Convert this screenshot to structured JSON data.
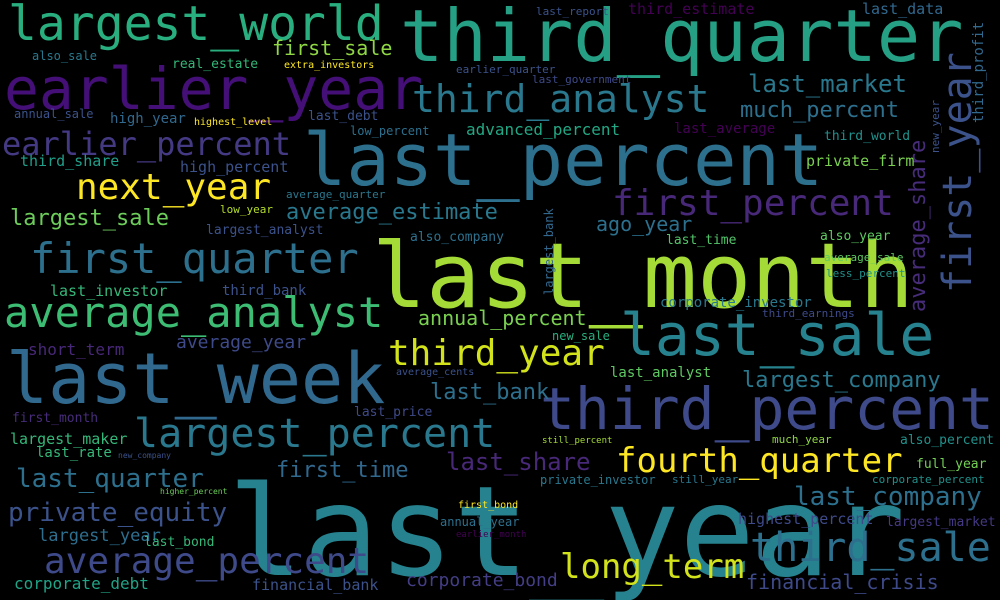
{
  "background": "#000000",
  "words": [
    {
      "text": "last_year",
      "color": "#26828e"
    },
    {
      "text": "last_month",
      "color": "#a5db36"
    },
    {
      "text": "last_percent",
      "color": "#2d708e"
    },
    {
      "text": "third_quarter",
      "color": "#25a085"
    },
    {
      "text": "last_week",
      "color": "#31688e"
    },
    {
      "text": "earlier_year",
      "color": "#440f76"
    },
    {
      "text": "largest_world",
      "color": "#29af7f"
    },
    {
      "text": "third_percent",
      "color": "#3e4a89"
    },
    {
      "text": "last_sale",
      "color": "#26828e"
    },
    {
      "text": "average_analyst",
      "color": "#3dbc74"
    },
    {
      "text": "first_quarter",
      "color": "#2d708e"
    },
    {
      "text": "largest_percent",
      "color": "#2a788e"
    },
    {
      "text": "third_sale",
      "color": "#2d708e"
    },
    {
      "text": "average_percent",
      "color": "#3e4a89"
    },
    {
      "text": "earlier_percent",
      "color": "#443983"
    },
    {
      "text": "next_year",
      "color": "#fde725"
    },
    {
      "text": "third_analyst",
      "color": "#2a788e"
    },
    {
      "text": "first_percent",
      "color": "#482878"
    },
    {
      "text": "fourth_quarter",
      "color": "#fde725"
    },
    {
      "text": "third_year",
      "color": "#d2e21b"
    },
    {
      "text": "long_term",
      "color": "#d2e21b"
    },
    {
      "text": "private_equity",
      "color": "#3b528b"
    },
    {
      "text": "first_year",
      "color": "#3b528b"
    },
    {
      "text": "average_share",
      "color": "#472c7a"
    },
    {
      "text": "last_market",
      "color": "#2a788e"
    },
    {
      "text": "much_percent",
      "color": "#2d708e"
    },
    {
      "text": "average_estimate",
      "color": "#2a788e"
    },
    {
      "text": "last_company",
      "color": "#2d708e"
    },
    {
      "text": "largest_company",
      "color": "#2a788e"
    },
    {
      "text": "last_quarter",
      "color": "#2d708e"
    },
    {
      "text": "last_share",
      "color": "#482878"
    },
    {
      "text": "last_bank",
      "color": "#2d708e"
    },
    {
      "text": "largest_sale",
      "color": "#6ccd5a"
    },
    {
      "text": "first_time",
      "color": "#31688e"
    },
    {
      "text": "annual_percent",
      "color": "#7ad151"
    },
    {
      "text": "financial_crisis",
      "color": "#3e4a89"
    },
    {
      "text": "corporate_bond",
      "color": "#433e85"
    },
    {
      "text": "ago_year",
      "color": "#2d708e"
    },
    {
      "text": "average_year",
      "color": "#3e4a89"
    },
    {
      "text": "first_sale",
      "color": "#8fd744"
    },
    {
      "text": "largest_year",
      "color": "#2e6e8e"
    },
    {
      "text": "third_profit",
      "color": "#31688e"
    },
    {
      "text": "third_estimate",
      "color": "#440154"
    },
    {
      "text": "last_data",
      "color": "#31688e"
    },
    {
      "text": "highest_percent",
      "color": "#3e4a89"
    },
    {
      "text": "advanced_percent",
      "color": "#22a884"
    },
    {
      "text": "last_investor",
      "color": "#35b779"
    },
    {
      "text": "corporate_debt",
      "color": "#20a486"
    },
    {
      "text": "short_term",
      "color": "#482878"
    },
    {
      "text": "private_firm",
      "color": "#7ad151"
    },
    {
      "text": "third_share",
      "color": "#1f9e89"
    },
    {
      "text": "high_percent",
      "color": "#3b528b"
    },
    {
      "text": "largest_maker",
      "color": "#35b779"
    },
    {
      "text": "financial_bank",
      "color": "#3b528b"
    },
    {
      "text": "last_average",
      "color": "#440154"
    },
    {
      "text": "third_bank",
      "color": "#3b528b"
    },
    {
      "text": "last_analyst",
      "color": "#5ec962"
    },
    {
      "text": "high_year",
      "color": "#31688e"
    },
    {
      "text": "real_estate",
      "color": "#35b779"
    },
    {
      "text": "last_rate",
      "color": "#35b779"
    },
    {
      "text": "first_month",
      "color": "#472c7a"
    },
    {
      "text": "last_time",
      "color": "#52c569"
    },
    {
      "text": "third_world",
      "color": "#21918c"
    },
    {
      "text": "also_company",
      "color": "#2d708e"
    },
    {
      "text": "corporate_investor",
      "color": "#2a788e"
    },
    {
      "text": "largest_analyst",
      "color": "#3b528b"
    },
    {
      "text": "largest_market",
      "color": "#443983"
    },
    {
      "text": "last_price",
      "color": "#3e4a89"
    },
    {
      "text": "also_percent",
      "color": "#21918c"
    },
    {
      "text": "full_year",
      "color": "#73d056"
    },
    {
      "text": "last_bond",
      "color": "#35b779"
    },
    {
      "text": "annual_year",
      "color": "#2d708e"
    },
    {
      "text": "private_investor",
      "color": "#2a788e"
    },
    {
      "text": "new_sale",
      "color": "#29af7f"
    },
    {
      "text": "also_year",
      "color": "#5ec962"
    },
    {
      "text": "annual_sale",
      "color": "#3b528b"
    },
    {
      "text": "also_sale",
      "color": "#2a788e"
    },
    {
      "text": "last_debt",
      "color": "#3b528b"
    },
    {
      "text": "low_percent",
      "color": "#2d708e"
    },
    {
      "text": "much_year",
      "color": "#8fd744"
    },
    {
      "text": "average_quarter",
      "color": "#2a788e"
    },
    {
      "text": "earlier_quarter",
      "color": "#3b528b"
    },
    {
      "text": "less_percent",
      "color": "#21918c"
    },
    {
      "text": "average_sale",
      "color": "#5ec962"
    },
    {
      "text": "new_year",
      "color": "#3b528b"
    },
    {
      "text": "third_earnings",
      "color": "#3e4a89"
    },
    {
      "text": "still_year",
      "color": "#2a788e"
    },
    {
      "text": "corporate_percent",
      "color": "#21918c"
    },
    {
      "text": "low_year",
      "color": "#b5de2b"
    },
    {
      "text": "highest_level",
      "color": "#fde725"
    },
    {
      "text": "extra_investors",
      "color": "#fde725"
    },
    {
      "text": "last_report",
      "color": "#3b528b"
    },
    {
      "text": "last_government",
      "color": "#3e4a89"
    },
    {
      "text": "still_percent",
      "color": "#a5db36"
    },
    {
      "text": "average_cents",
      "color": "#3b528b"
    },
    {
      "text": "new_company",
      "color": "#3b528b"
    },
    {
      "text": "higher_percent",
      "color": "#6ccd5a"
    },
    {
      "text": "first_bond",
      "color": "#fde725"
    },
    {
      "text": "earlier_month",
      "color": "#440154"
    },
    {
      "text": "largest_bank",
      "color": "#31688e"
    }
  ]
}
